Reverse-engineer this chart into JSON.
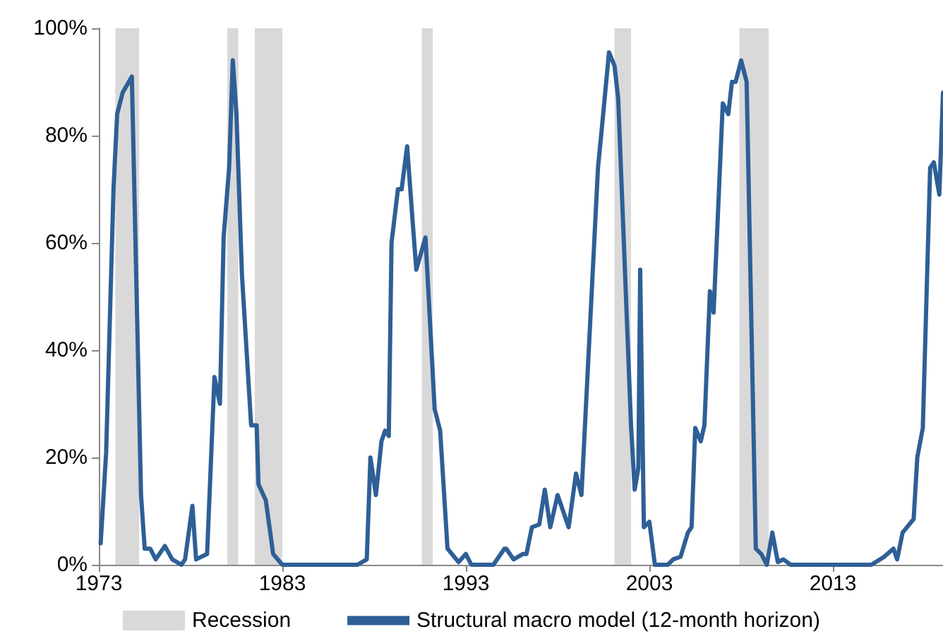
{
  "chart_data": {
    "type": "line",
    "xlim": [
      1973,
      2019
    ],
    "xticks": [
      1973,
      1983,
      1993,
      2003,
      2013
    ],
    "ylim": [
      0,
      100
    ],
    "yticks": [
      {
        "value": 0,
        "label": "0%"
      },
      {
        "value": 20,
        "label": "20%"
      },
      {
        "value": 40,
        "label": "40%"
      },
      {
        "value": 60,
        "label": "60%"
      },
      {
        "value": 80,
        "label": "80%"
      },
      {
        "value": 100,
        "label": "100%"
      }
    ],
    "grid": false,
    "legend": "bottom",
    "marker": "none",
    "line_style": "solid",
    "bands": [
      {
        "axis": "x",
        "from": 1973.9,
        "to": 1975.2,
        "label": "Recession",
        "color": "#d9d9d9"
      },
      {
        "axis": "x",
        "from": 1980.0,
        "to": 1980.6,
        "color": "#d9d9d9"
      },
      {
        "axis": "x",
        "from": 1981.5,
        "to": 1983.0,
        "color": "#d9d9d9"
      },
      {
        "axis": "x",
        "from": 1990.6,
        "to": 1991.2,
        "color": "#d9d9d9"
      },
      {
        "axis": "x",
        "from": 2001.1,
        "to": 2002.0,
        "color": "#d9d9d9"
      },
      {
        "axis": "x",
        "from": 2007.9,
        "to": 2009.5,
        "color": "#d9d9d9"
      }
    ],
    "series": [
      {
        "name": "Structural macro model (12-month horizon)",
        "color": "#2e5f96",
        "x": [
          1973.1,
          1973.4,
          1973.8,
          1974.0,
          1974.3,
          1974.8,
          1975.3,
          1975.5,
          1975.8,
          1976.1,
          1976.6,
          1977.0,
          1977.5,
          1977.7,
          1978.1,
          1978.3,
          1978.9,
          1979.3,
          1979.6,
          1979.8,
          1980.1,
          1980.3,
          1980.5,
          1980.8,
          1981.3,
          1981.6,
          1981.7,
          1982.1,
          1982.5,
          1983.0,
          1987.1,
          1987.6,
          1987.8,
          1988.1,
          1988.4,
          1988.6,
          1988.8,
          1988.95,
          1989.3,
          1989.5,
          1989.8,
          1990.1,
          1990.3,
          1990.8,
          1991.3,
          1991.6,
          1992.0,
          1992.6,
          1993.0,
          1993.3,
          1994.5,
          1995.1,
          1995.2,
          1995.6,
          1996.1,
          1996.3,
          1996.6,
          1997.0,
          1997.3,
          1997.6,
          1998.0,
          1998.6,
          1999.0,
          1999.3,
          2000.2,
          2000.4,
          2000.8,
          2001.1,
          2001.3,
          2002.0,
          2002.2,
          2002.4,
          2002.5,
          2002.7,
          2003.0,
          2003.3,
          2004.0,
          2004.3,
          2004.7,
          2005.1,
          2005.3,
          2005.5,
          2005.8,
          2006.0,
          2006.3,
          2006.5,
          2007.0,
          2007.3,
          2007.5,
          2007.7,
          2008.0,
          2008.3,
          2008.8,
          2009.1,
          2009.4,
          2009.7,
          2010.0,
          2010.3,
          2010.7,
          2015.1,
          2015.8,
          2016.3,
          2016.5,
          2016.8,
          2017.4,
          2017.6,
          2017.9,
          2018.3,
          2018.5,
          2018.8,
          2019.0
        ],
        "values": [
          4,
          21,
          70,
          84,
          88,
          91,
          13,
          3,
          3,
          1,
          3.5,
          1,
          0,
          1,
          11,
          1,
          2,
          35,
          30,
          61,
          74,
          94,
          84,
          54,
          26,
          26,
          15,
          12,
          2,
          0,
          0,
          1,
          20,
          13,
          23,
          25,
          24,
          60,
          70,
          70,
          78,
          64,
          55,
          61,
          29,
          25,
          3,
          0.5,
          2,
          0,
          0,
          3,
          3,
          1,
          2,
          2,
          7,
          7.5,
          14,
          7,
          13,
          7,
          17,
          13,
          74,
          81,
          95.5,
          93,
          87,
          26,
          14,
          18,
          55,
          7,
          8,
          0,
          0,
          1,
          1.5,
          6,
          7,
          25.5,
          23,
          26,
          51,
          47,
          86,
          84,
          90,
          90,
          94,
          90,
          3,
          2,
          0,
          6,
          0.5,
          1,
          0,
          0,
          1.5,
          3,
          1,
          6,
          8.5,
          20,
          25.5,
          74,
          75,
          69,
          88
        ]
      }
    ]
  }
}
